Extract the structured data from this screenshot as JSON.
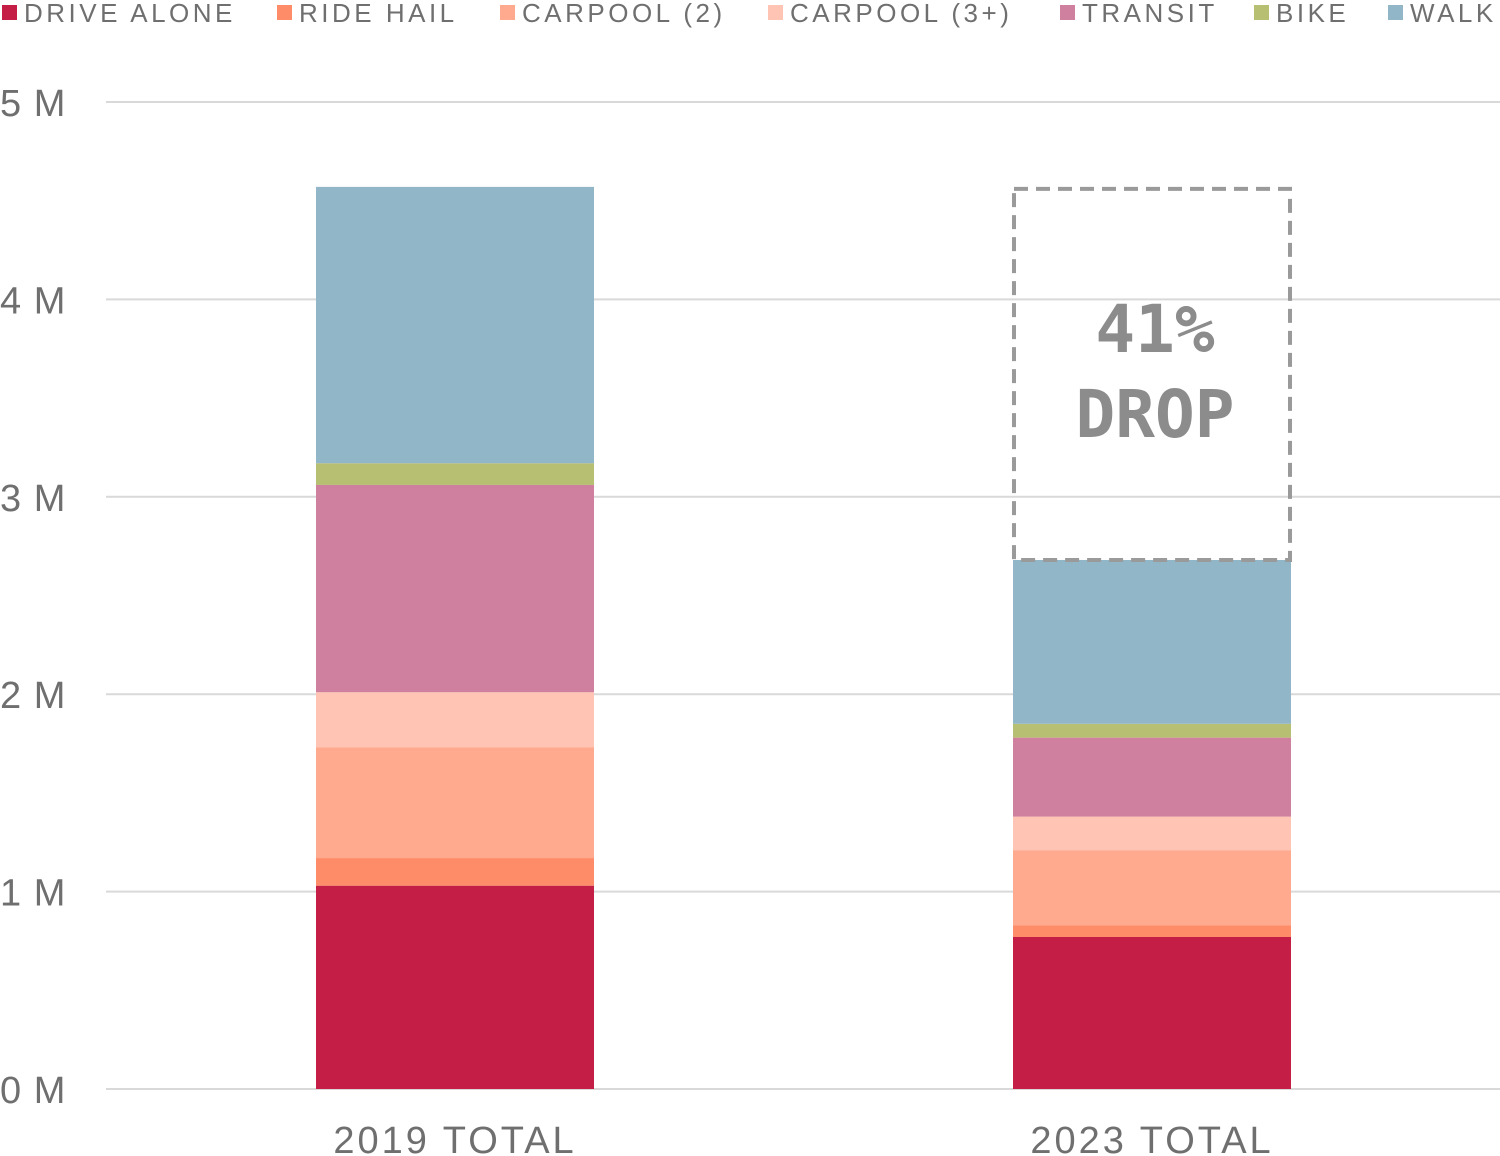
{
  "chart_data": {
    "type": "bar",
    "stacked": true,
    "categories": [
      "2019 TOTAL",
      "2023 TOTAL"
    ],
    "series": [
      {
        "name": "DRIVE ALONE",
        "color": "#C41E47",
        "values": [
          1.03,
          0.77
        ]
      },
      {
        "name": "RIDE HAIL",
        "color": "#FF8C69",
        "values": [
          0.14,
          0.06
        ]
      },
      {
        "name": "CARPOOL (2)",
        "color": "#FFAA8F",
        "values": [
          0.56,
          0.38
        ]
      },
      {
        "name": "CARPOOL (3+)",
        "color": "#FFC4B4",
        "values": [
          0.28,
          0.17
        ]
      },
      {
        "name": "TRANSIT",
        "color": "#CF809E",
        "values": [
          1.05,
          0.4
        ]
      },
      {
        "name": "BIKE",
        "color": "#B6BF72",
        "values": [
          0.11,
          0.07
        ]
      },
      {
        "name": "WALK",
        "color": "#90B6C8",
        "values": [
          1.4,
          0.83
        ]
      }
    ],
    "y_ticks": [
      {
        "value": 0,
        "label": "0 M"
      },
      {
        "value": 1,
        "label": "1 M"
      },
      {
        "value": 2,
        "label": "2 M"
      },
      {
        "value": 3,
        "label": "3 M"
      },
      {
        "value": 4,
        "label": "4 M"
      },
      {
        "value": 5,
        "label": "5 M"
      }
    ],
    "ylim": [
      0,
      5
    ],
    "y_unit": "M",
    "grid": true,
    "legend_position": "top",
    "annotation": {
      "lines": [
        "41%",
        "DROP"
      ],
      "category": "2023 TOTAL",
      "from_value": 2.68,
      "to_value": 4.56,
      "style": "dashed-box"
    }
  }
}
